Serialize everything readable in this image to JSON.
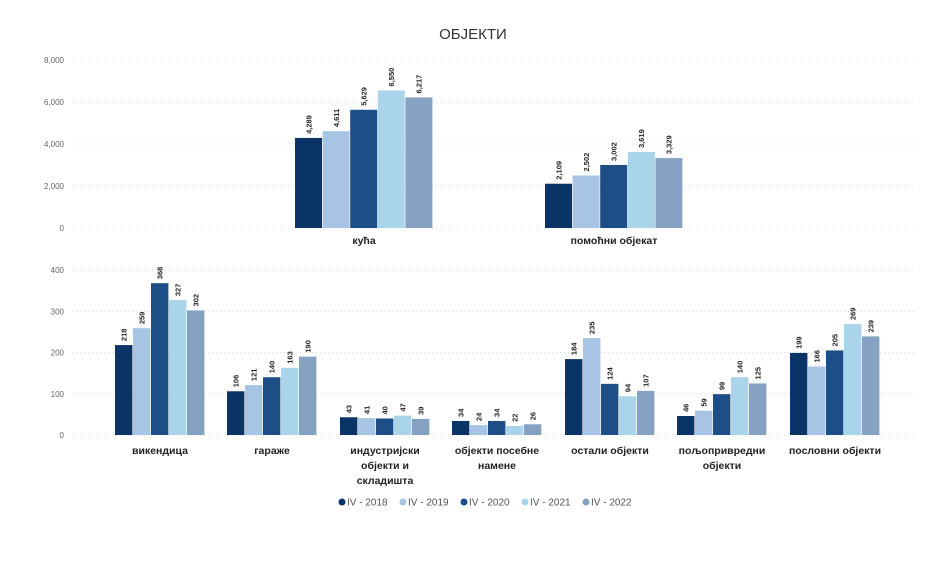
{
  "chart_data": {
    "type": "bar",
    "title": "ОБЈЕКТИ",
    "series_names": [
      "IV - 2018",
      "IV - 2019",
      "IV - 2020",
      "IV - 2021",
      "IV - 2022"
    ],
    "colors": [
      "#0b3466",
      "#a8c4e5",
      "#1d4e85",
      "#a9d4ea",
      "#85a2c2"
    ],
    "panels": [
      {
        "ylim": [
          0,
          8000
        ],
        "yticks": [
          "0",
          "2,000",
          "4,000",
          "6,000",
          "8,000"
        ],
        "ytick_values": [
          0,
          2000,
          4000,
          6000,
          8000
        ],
        "categories": [
          {
            "label": [
              "кућа"
            ],
            "values": [
              4289,
              4611,
              5629,
              6550,
              6217
            ],
            "labels": [
              "4,289",
              "4,611",
              "5,629",
              "6,550",
              "6,217"
            ]
          },
          {
            "label": [
              "помоћни објекат"
            ],
            "values": [
              2109,
              2502,
              3002,
              3619,
              3329
            ],
            "labels": [
              "2,109",
              "2,502",
              "3,002",
              "3,619",
              "3,329"
            ]
          }
        ]
      },
      {
        "ylim": [
          0,
          400
        ],
        "yticks": [
          "0",
          "100",
          "200",
          "300",
          "400"
        ],
        "ytick_values": [
          0,
          100,
          200,
          300,
          400
        ],
        "categories": [
          {
            "label": [
              "викендица"
            ],
            "values": [
              218,
              259,
              368,
              327,
              302
            ],
            "labels": [
              "218",
              "259",
              "368",
              "327",
              "302"
            ]
          },
          {
            "label": [
              "гараже"
            ],
            "values": [
              106,
              121,
              140,
              163,
              190
            ],
            "labels": [
              "106",
              "121",
              "140",
              "163",
              "190"
            ]
          },
          {
            "label": [
              "индустријски",
              "објекти и",
              "складишта"
            ],
            "values": [
              43,
              41,
              40,
              47,
              39
            ],
            "labels": [
              "43",
              "41",
              "40",
              "47",
              "39"
            ]
          },
          {
            "label": [
              "објекти посебне",
              "намене"
            ],
            "values": [
              34,
              24,
              34,
              22,
              26
            ],
            "labels": [
              "34",
              "24",
              "34",
              "22",
              "26"
            ]
          },
          {
            "label": [
              "остали објекти"
            ],
            "values": [
              184,
              235,
              124,
              94,
              107
            ],
            "labels": [
              "184",
              "235",
              "124",
              "94",
              "107"
            ]
          },
          {
            "label": [
              "пољопривредни",
              "објекти"
            ],
            "values": [
              46,
              59,
              99,
              140,
              125
            ],
            "labels": [
              "46",
              "59",
              "99",
              "140",
              "125"
            ]
          },
          {
            "label": [
              "пословни објекти"
            ],
            "values": [
              199,
              166,
              205,
              269,
              239
            ],
            "labels": [
              "199",
              "166",
              "205",
              "269",
              "239"
            ]
          }
        ]
      }
    ],
    "legend_position": "bottom-center"
  }
}
